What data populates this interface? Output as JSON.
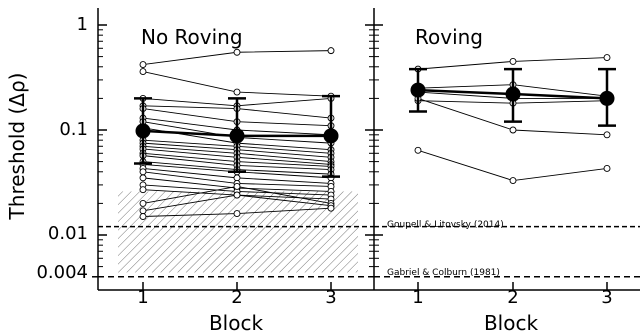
{
  "chart_data": {
    "type": "scatter",
    "ylabel": "Threshold (Δρ)",
    "y_scale": "log",
    "ylim": [
      0.003,
      1.3
    ],
    "y_ticks": [
      {
        "value": 1,
        "label": "1"
      },
      {
        "value": 0.1,
        "label": "0.1"
      },
      {
        "value": 0.01,
        "label": "0.01"
      },
      {
        "value": 0.004,
        "label": "0.004"
      }
    ],
    "x_ticks": [
      "1",
      "2",
      "3"
    ],
    "panels": [
      {
        "title": "No Roving",
        "xlabel": "Block",
        "x": [
          1,
          2,
          3
        ],
        "subjects": [
          [
            0.42,
            0.55,
            0.57
          ],
          [
            0.36,
            0.23,
            0.21
          ],
          [
            0.2,
            0.17,
            0.2
          ],
          [
            0.17,
            0.16,
            0.13
          ],
          [
            0.16,
            0.12,
            0.11
          ],
          [
            0.13,
            0.1,
            0.09
          ],
          [
            0.12,
            0.085,
            0.075
          ],
          [
            0.105,
            0.075,
            0.065
          ],
          [
            0.08,
            0.07,
            0.06
          ],
          [
            0.075,
            0.065,
            0.055
          ],
          [
            0.07,
            0.06,
            0.05
          ],
          [
            0.066,
            0.055,
            0.047
          ],
          [
            0.06,
            0.05,
            0.045
          ],
          [
            0.057,
            0.046,
            0.042
          ],
          [
            0.05,
            0.042,
            0.038
          ],
          [
            0.047,
            0.04,
            0.035
          ],
          [
            0.043,
            0.035,
            0.031
          ],
          [
            0.04,
            0.031,
            0.029
          ],
          [
            0.035,
            0.028,
            0.026
          ],
          [
            0.03,
            0.026,
            0.024
          ],
          [
            0.027,
            0.024,
            0.022
          ],
          [
            0.02,
            0.029,
            0.02
          ],
          [
            0.017,
            0.024,
            0.019
          ],
          [
            0.015,
            0.016,
            0.018
          ]
        ],
        "mean": {
          "values": [
            0.098,
            0.088,
            0.088
          ],
          "lower": [
            0.048,
            0.04,
            0.036
          ],
          "upper": [
            0.2,
            0.2,
            0.21
          ]
        },
        "reference_band": {
          "low": 0.0044,
          "high": 0.026
        },
        "reference_lines": [
          {
            "value": 0.012,
            "label": ""
          },
          {
            "value": 0.004,
            "label": ""
          }
        ]
      },
      {
        "title": "Roving",
        "xlabel": "Block",
        "x": [
          1,
          2,
          3
        ],
        "subjects": [
          [
            0.38,
            0.45,
            0.49
          ],
          [
            0.25,
            0.27,
            0.21
          ],
          [
            0.23,
            0.2,
            0.2
          ],
          [
            0.19,
            0.18,
            0.19
          ],
          [
            0.2,
            0.1,
            0.09
          ],
          [
            0.064,
            0.033,
            0.043
          ]
        ],
        "mean": {
          "values": [
            0.24,
            0.22,
            0.2
          ],
          "lower": [
            0.15,
            0.12,
            0.11
          ],
          "upper": [
            0.38,
            0.38,
            0.38
          ]
        },
        "reference_lines": [
          {
            "value": 0.012,
            "label": "Goupell & Litovsky (2014)"
          },
          {
            "value": 0.004,
            "label": "Gabriel & Colburn (1981)"
          }
        ]
      }
    ]
  }
}
